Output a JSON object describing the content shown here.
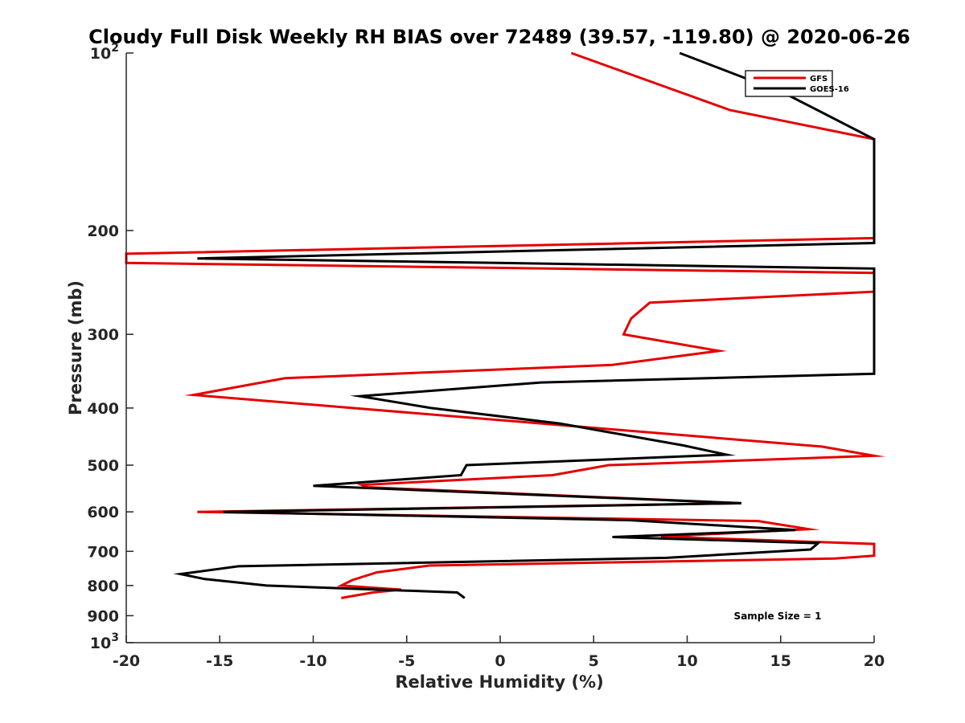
{
  "chart_data": {
    "type": "line",
    "title": "Cloudy Full Disk Weekly RH BIAS over 72489 (39.57, -119.80) @ 2020-06-26",
    "xlabel": "Relative Humidity (%)",
    "ylabel": "Pressure (mb)",
    "xlim": [
      -20,
      20
    ],
    "ylim": [
      100,
      1000
    ],
    "y_scale": "log",
    "y_reversed": true,
    "x_ticks": [
      "-20",
      "-15",
      "-10",
      "-5",
      "0",
      "5",
      "10",
      "15",
      "20"
    ],
    "y_ticks": [
      {
        "value": 100,
        "base": "10",
        "exp": "2"
      },
      {
        "value": 200,
        "label": "200"
      },
      {
        "value": 300,
        "label": "300"
      },
      {
        "value": 400,
        "label": "400"
      },
      {
        "value": 500,
        "label": "500"
      },
      {
        "value": 600,
        "label": "600"
      },
      {
        "value": 700,
        "label": "700"
      },
      {
        "value": 800,
        "label": "800"
      },
      {
        "value": 900,
        "label": "900"
      },
      {
        "value": 1000,
        "base": "10",
        "exp": "3"
      }
    ],
    "legend_position": "top-right",
    "annotation": "Sample Size = 1",
    "series": [
      {
        "name": "GFS",
        "color": "#e50000",
        "x": [
          3.8,
          12.3,
          20,
          20,
          -20,
          -20,
          20,
          20,
          8,
          7,
          6.6,
          11.7,
          6,
          -11.5,
          -16.4,
          17.2,
          20,
          5.8,
          2.8,
          -7.4,
          -7.1,
          12.9,
          -16.2,
          13.8,
          16.5,
          8.6,
          20,
          20,
          17.9,
          -3.8,
          -6.6,
          -7.9,
          -8.5,
          -5.3,
          -6.8,
          -8.5
        ],
        "y": [
          100,
          125,
          140,
          206,
          219,
          227,
          236,
          254,
          265,
          282,
          300,
          320,
          338,
          356,
          380,
          465,
          482,
          500,
          520,
          540,
          545,
          580,
          600,
          622,
          642,
          661,
          680,
          712,
          720,
          740,
          760,
          783,
          800,
          813,
          822,
          840
        ]
      },
      {
        "name": "GOES-16",
        "color": "#000000",
        "x": [
          9.6,
          15.2,
          20,
          20,
          -16.2,
          20,
          20,
          2.2,
          -7.5,
          -3.7,
          3.2,
          9.8,
          12.1,
          -1.8,
          -2.1,
          -10.0,
          12.9,
          -14.8,
          7.0,
          15.8,
          6.0,
          17.0,
          16.6,
          8.9,
          -14.0,
          -17.1,
          -15.8,
          -12.5,
          -2.3,
          -1.9
        ],
        "y": [
          100,
          117,
          140,
          210,
          223,
          232,
          350,
          362,
          382,
          400,
          425,
          463,
          480,
          500,
          520,
          542,
          580,
          600,
          620,
          644,
          662,
          678,
          695,
          718,
          742,
          765,
          780,
          800,
          822,
          840
        ]
      }
    ]
  }
}
